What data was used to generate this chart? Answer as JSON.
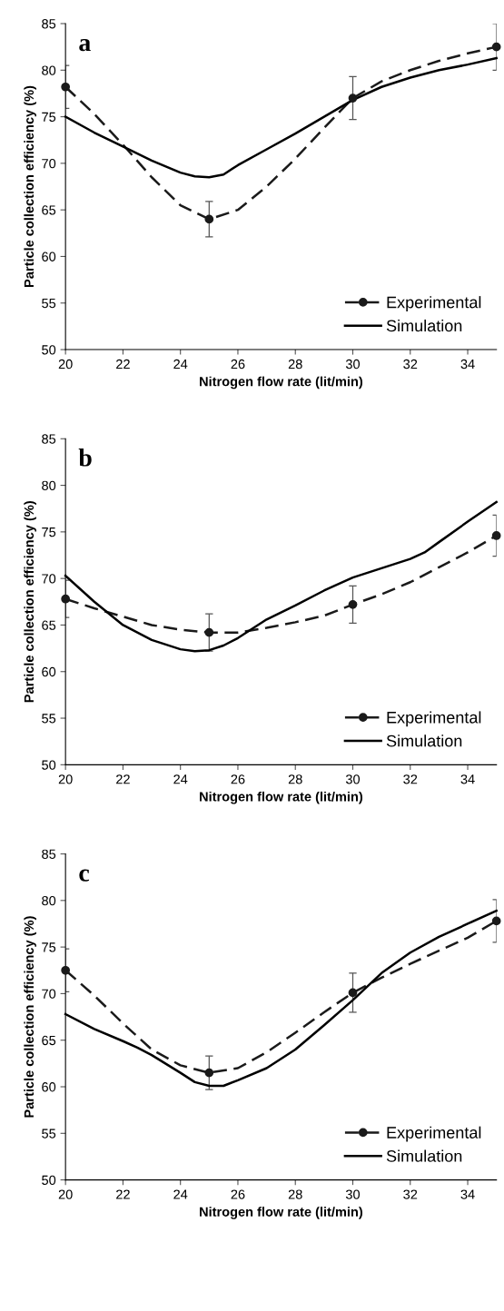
{
  "chart_data": [
    {
      "type": "line",
      "xlabel": "Nitrogen flow rate (lit/min)",
      "ylabel": "Particle collection efficiency (%)",
      "annotations": [
        "a"
      ],
      "xlim": [
        20,
        35
      ],
      "xticks": [
        20,
        22,
        24,
        26,
        28,
        30,
        32,
        34
      ],
      "ylim": [
        50,
        85
      ],
      "yticks": [
        50,
        55,
        60,
        65,
        70,
        75,
        80,
        85
      ],
      "grid": false,
      "legend": "bottom right",
      "series": [
        {
          "type": "scatter",
          "name": "Experimental",
          "color": "#1a1a1a",
          "x": [
            20,
            25,
            30,
            35
          ],
          "values": [
            78.2,
            64.0,
            77.0,
            82.5
          ],
          "errors": [
            2.3,
            1.9,
            2.3,
            2.5
          ],
          "marker": "circle",
          "line_style": "dashed"
        },
        {
          "color": "#1a1a1a",
          "x": [
            20,
            21,
            22,
            23,
            24,
            25,
            26,
            27,
            28,
            29,
            30,
            31,
            32,
            33,
            34,
            35
          ],
          "values": [
            78.2,
            75.3,
            72.0,
            68.5,
            65.5,
            64.0,
            65.0,
            67.5,
            70.5,
            73.8,
            77.0,
            78.8,
            80.0,
            81.0,
            81.8,
            82.5
          ],
          "marker": "none",
          "line_style": "dashed"
        },
        {
          "name": "Simulation",
          "color": "#000000",
          "x": [
            20,
            21,
            22,
            23,
            24,
            24.5,
            25,
            25.5,
            26,
            27,
            28,
            29,
            30,
            31,
            32,
            33,
            34,
            35
          ],
          "values": [
            75.0,
            73.3,
            71.8,
            70.3,
            69.0,
            68.6,
            68.5,
            68.8,
            69.8,
            71.5,
            73.2,
            75.0,
            76.8,
            78.2,
            79.2,
            80.0,
            80.6,
            81.3
          ],
          "marker": "none",
          "line_style": "solid"
        }
      ]
    },
    {
      "type": "line",
      "xlabel": "Nitrogen flow rate (lit/min)",
      "ylabel": "Particle collection efficiency (%)",
      "annotations": [
        "b"
      ],
      "xlim": [
        20,
        35
      ],
      "xticks": [
        20,
        22,
        24,
        26,
        28,
        30,
        32,
        34
      ],
      "ylim": [
        50,
        85
      ],
      "yticks": [
        50,
        55,
        60,
        65,
        70,
        75,
        80,
        85
      ],
      "grid": false,
      "legend": "bottom right",
      "series": [
        {
          "type": "scatter",
          "name": "Experimental",
          "color": "#1a1a1a",
          "x": [
            20,
            25,
            30,
            35
          ],
          "values": [
            67.8,
            64.2,
            67.2,
            74.6
          ],
          "errors": [
            2.0,
            2.0,
            2.0,
            2.2
          ],
          "marker": "circle",
          "line_style": "dashed"
        },
        {
          "color": "#1a1a1a",
          "x": [
            20,
            21,
            22,
            23,
            24,
            25,
            26,
            27,
            28,
            29,
            30,
            31,
            32,
            33,
            34,
            35
          ],
          "values": [
            67.8,
            66.8,
            65.9,
            65.0,
            64.5,
            64.2,
            64.2,
            64.7,
            65.3,
            66.0,
            67.2,
            68.3,
            69.6,
            71.2,
            72.8,
            74.6
          ],
          "marker": "none",
          "line_style": "dashed"
        },
        {
          "name": "Simulation",
          "color": "#000000",
          "x": [
            20,
            21,
            22,
            23,
            24,
            24.5,
            25,
            25.5,
            26,
            27,
            28,
            29,
            30,
            31,
            32,
            32.5,
            33,
            34,
            35
          ],
          "values": [
            70.3,
            67.5,
            65.0,
            63.4,
            62.4,
            62.2,
            62.3,
            62.8,
            63.6,
            65.6,
            67.1,
            68.7,
            70.1,
            71.1,
            72.1,
            72.8,
            73.9,
            76.1,
            78.2
          ],
          "marker": "none",
          "line_style": "solid"
        }
      ]
    },
    {
      "type": "line",
      "xlabel": "Nitrogen flow rate (lit/min)",
      "ylabel": "Particle collection efficiency (%)",
      "annotations": [
        "c"
      ],
      "xlim": [
        20,
        35
      ],
      "xticks": [
        20,
        22,
        24,
        26,
        28,
        30,
        32,
        34
      ],
      "ylim": [
        50,
        85
      ],
      "yticks": [
        50,
        55,
        60,
        65,
        70,
        75,
        80,
        85
      ],
      "grid": false,
      "legend": "bottom right",
      "series": [
        {
          "type": "scatter",
          "name": "Experimental",
          "color": "#1a1a1a",
          "x": [
            20,
            25,
            30,
            35
          ],
          "values": [
            72.5,
            61.5,
            70.1,
            77.8
          ],
          "errors": [
            2.3,
            1.8,
            2.1,
            2.3
          ],
          "marker": "circle",
          "line_style": "dashed"
        },
        {
          "color": "#1a1a1a",
          "x": [
            20,
            21,
            22,
            23,
            24,
            25,
            26,
            27,
            28,
            29,
            30,
            31,
            32,
            33,
            34,
            35
          ],
          "values": [
            72.5,
            69.8,
            66.8,
            64.0,
            62.3,
            61.5,
            62.0,
            63.7,
            65.8,
            68.0,
            70.1,
            71.7,
            73.2,
            74.6,
            76.0,
            77.8
          ],
          "marker": "none",
          "line_style": "dashed"
        },
        {
          "name": "Simulation",
          "color": "#000000",
          "x": [
            20,
            21,
            22,
            22.5,
            23,
            24,
            24.5,
            25,
            25.5,
            26,
            27,
            28,
            29,
            30,
            31,
            32,
            33,
            34,
            35
          ],
          "values": [
            67.8,
            66.2,
            64.9,
            64.2,
            63.4,
            61.5,
            60.5,
            60.1,
            60.1,
            60.7,
            62.0,
            64.0,
            66.6,
            69.3,
            72.2,
            74.4,
            76.1,
            77.5,
            78.9
          ],
          "marker": "none",
          "line_style": "solid"
        }
      ]
    }
  ]
}
